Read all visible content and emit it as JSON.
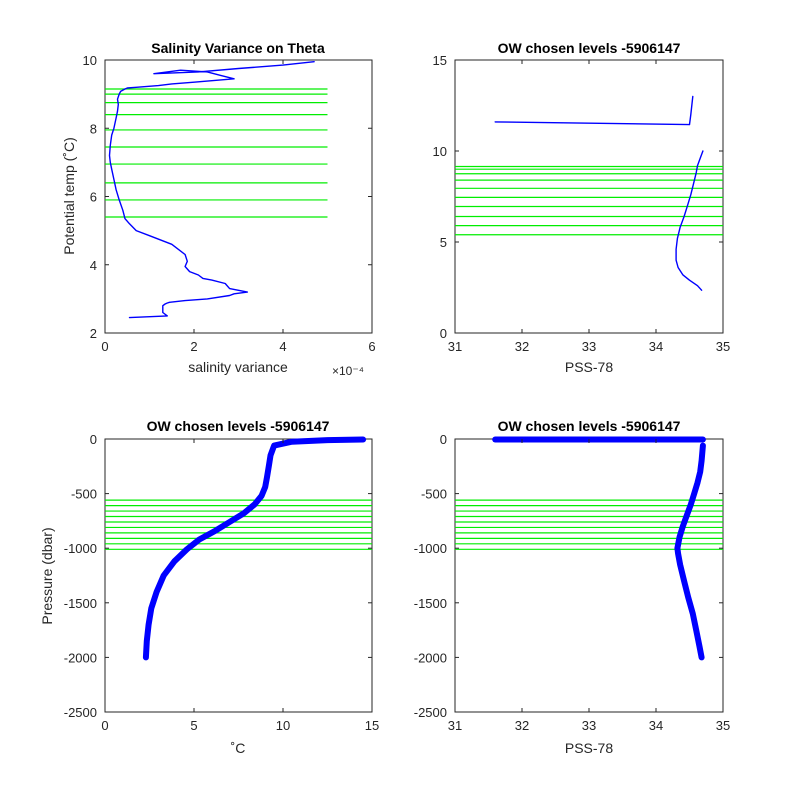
{
  "colors": {
    "profile": "#0000ff",
    "levels": "#00ee00",
    "axes": "#262626",
    "background": "#ffffff"
  },
  "chart_data": [
    {
      "type": "line",
      "title": "Salinity Variance on Theta",
      "xlabel": "salinity variance",
      "xlabel_exponent": "×10⁻⁴",
      "ylabel": "Potential temp (˚C)",
      "xlim": [
        0,
        6
      ],
      "ylim": [
        2,
        10
      ],
      "xticks": [
        "0",
        "2",
        "4",
        "6"
      ],
      "yticks": [
        "2",
        "4",
        "6",
        "8",
        "10"
      ],
      "level_lines": {
        "x_range": [
          0,
          5
        ],
        "y": [
          5.4,
          5.9,
          6.4,
          6.95,
          7.45,
          7.95,
          8.4,
          8.75,
          9.0,
          9.15
        ]
      },
      "series": [
        {
          "x": [
            0.55,
            1.4,
            1.3,
            1.3,
            1.3,
            1.35,
            1.4,
            1.45,
            1.6,
            1.8,
            2.3,
            2.8,
            2.9,
            3.2,
            2.8,
            2.7,
            2.4,
            2.2,
            2.1,
            1.9,
            1.8,
            1.85,
            1.8,
            1.5,
            1.0,
            0.7,
            0.55,
            0.45,
            0.4,
            0.32,
            0.25,
            0.2,
            0.15,
            0.12,
            0.1,
            0.12,
            0.15,
            0.2,
            0.25,
            0.28,
            0.3,
            0.28,
            0.32,
            0.35,
            0.45,
            0.5,
            0.7,
            1.2,
            1.5,
            2.0,
            2.9,
            2.6,
            2.3,
            1.7,
            1.1,
            2.1,
            3.0,
            4.0,
            4.7
          ],
          "y": [
            2.45,
            2.5,
            2.6,
            2.7,
            2.8,
            2.85,
            2.88,
            2.9,
            2.92,
            2.95,
            3.0,
            3.1,
            3.15,
            3.2,
            3.3,
            3.45,
            3.55,
            3.6,
            3.7,
            3.8,
            3.95,
            4.1,
            4.3,
            4.6,
            4.85,
            5.0,
            5.2,
            5.35,
            5.6,
            5.9,
            6.2,
            6.5,
            6.8,
            7.0,
            7.2,
            7.5,
            7.8,
            8.0,
            8.3,
            8.5,
            8.7,
            8.85,
            9.0,
            9.08,
            9.15,
            9.18,
            9.2,
            9.25,
            9.3,
            9.35,
            9.45,
            9.55,
            9.65,
            9.7,
            9.6,
            9.65,
            9.75,
            9.85,
            9.95
          ]
        }
      ]
    },
    {
      "type": "line",
      "title": "OW chosen levels -5906147",
      "xlabel": "PSS-78",
      "ylabel": "",
      "xlim": [
        31,
        35
      ],
      "ylim": [
        0,
        15
      ],
      "xticks": [
        "31",
        "32",
        "33",
        "34",
        "35"
      ],
      "yticks": [
        "0",
        "5",
        "10",
        "15"
      ],
      "level_lines": {
        "x_range": [
          31,
          35
        ],
        "y": [
          5.4,
          5.9,
          6.4,
          6.95,
          7.45,
          7.95,
          8.4,
          8.75,
          9.0,
          9.15
        ]
      },
      "series": [
        {
          "name": "",
          "x": [
            34.68,
            34.62,
            34.5,
            34.4,
            34.33,
            34.3,
            34.3,
            34.32,
            34.36,
            34.42,
            34.47,
            34.52,
            34.56,
            34.6,
            34.62,
            34.66,
            34.7
          ],
          "y": [
            2.35,
            2.6,
            2.9,
            3.2,
            3.6,
            4.0,
            4.6,
            5.2,
            5.8,
            6.4,
            7.0,
            7.6,
            8.2,
            8.8,
            9.2,
            9.6,
            10.0
          ]
        },
        {
          "name": "",
          "x": [
            31.6,
            34.5,
            34.52,
            34.55
          ],
          "y": [
            11.6,
            11.45,
            12.0,
            13.0
          ]
        }
      ]
    },
    {
      "type": "line",
      "title": "OW chosen levels -5906147",
      "xlabel": "˚C",
      "ylabel": "Pressure (dbar)",
      "xlim": [
        0,
        15
      ],
      "ylim": [
        -2500,
        0
      ],
      "xticks": [
        "0",
        "5",
        "10",
        "15"
      ],
      "yticks": [
        "-2500",
        "-2000",
        "-1500",
        "-1000",
        "-500",
        "0"
      ],
      "level_lines": {
        "x_range": [
          0,
          15
        ],
        "y": [
          -560,
          -610,
          -660,
          -710,
          -760,
          -810,
          -860,
          -910,
          -960,
          -1010
        ]
      },
      "series": [
        {
          "name": "",
          "x": [
            2.3,
            2.35,
            2.45,
            2.6,
            2.9,
            3.3,
            3.9,
            4.6,
            5.3,
            6.2,
            7.0,
            7.8,
            8.4,
            8.8,
            9.0,
            9.1,
            9.2,
            9.3,
            9.5,
            10.5,
            12.5,
            14.5
          ],
          "y": [
            -2000,
            -1850,
            -1700,
            -1550,
            -1400,
            -1250,
            -1120,
            -1010,
            -920,
            -840,
            -760,
            -680,
            -600,
            -520,
            -440,
            -350,
            -250,
            -150,
            -60,
            -25,
            -10,
            -5
          ]
        }
      ]
    },
    {
      "type": "line",
      "title": "OW chosen levels -5906147",
      "xlabel": "PSS-78",
      "ylabel": "",
      "xlim": [
        31,
        35
      ],
      "ylim": [
        -2500,
        0
      ],
      "xticks": [
        "31",
        "32",
        "33",
        "34",
        "35"
      ],
      "yticks": [
        "-2500",
        "-2000",
        "-1500",
        "-1000",
        "-500",
        "0"
      ],
      "level_lines": {
        "x_range": [
          31,
          35
        ],
        "y": [
          -560,
          -610,
          -660,
          -710,
          -760,
          -810,
          -860,
          -910,
          -960,
          -1010
        ]
      },
      "series": [
        {
          "name": "",
          "x": [
            34.68,
            34.65,
            34.6,
            34.55,
            34.48,
            34.42,
            34.36,
            34.33,
            34.32,
            34.35,
            34.4,
            34.46,
            34.52,
            34.57,
            34.62,
            34.66,
            34.68,
            34.7
          ],
          "y": [
            -2000,
            -1900,
            -1750,
            -1600,
            -1450,
            -1300,
            -1150,
            -1050,
            -1000,
            -900,
            -800,
            -700,
            -600,
            -500,
            -400,
            -300,
            -200,
            -60
          ]
        },
        {
          "name": "",
          "x": [
            31.6,
            34.7
          ],
          "y": [
            -5,
            -5
          ]
        }
      ]
    }
  ]
}
